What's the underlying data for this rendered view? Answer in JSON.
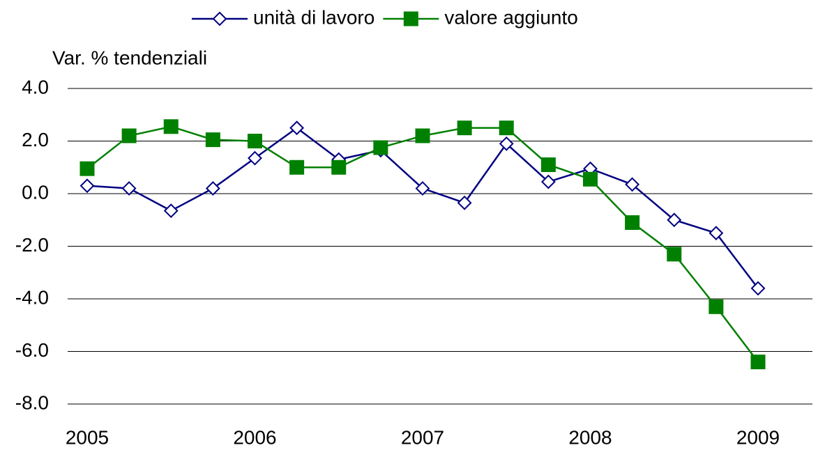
{
  "chart_data": {
    "type": "line",
    "ylabel": "Var. % tendenziali",
    "categories": [
      "2005",
      null,
      null,
      null,
      "2006",
      null,
      null,
      null,
      "2007",
      null,
      null,
      null,
      "2008",
      null,
      null,
      null,
      "2009"
    ],
    "series": [
      {
        "name": "unità di lavoro",
        "color": "#000080",
        "marker": "diamond-open",
        "values": [
          0.3,
          0.2,
          -0.65,
          0.2,
          1.35,
          2.5,
          1.3,
          1.65,
          0.2,
          -0.35,
          1.9,
          0.45,
          0.95,
          0.35,
          -1.0,
          -1.5,
          -3.6
        ]
      },
      {
        "name": "valore aggiunto",
        "color": "#008000",
        "marker": "square-filled",
        "values": [
          0.95,
          2.2,
          2.55,
          2.05,
          2.0,
          1.0,
          1.0,
          1.75,
          2.2,
          2.5,
          2.5,
          1.1,
          0.55,
          -1.1,
          -2.3,
          -4.3,
          -6.4
        ]
      }
    ],
    "ylim": [
      -8,
      4
    ],
    "yticks": [
      {
        "value": 4,
        "label": "4.0"
      },
      {
        "value": 2,
        "label": "2.0"
      },
      {
        "value": 0,
        "label": "0.0"
      },
      {
        "value": -2,
        "label": "-2.0"
      },
      {
        "value": -4,
        "label": "-4.0"
      },
      {
        "value": -6,
        "label": "-6.0"
      },
      {
        "value": -8,
        "label": "-8.0"
      }
    ],
    "grid": true,
    "legend": "top"
  }
}
